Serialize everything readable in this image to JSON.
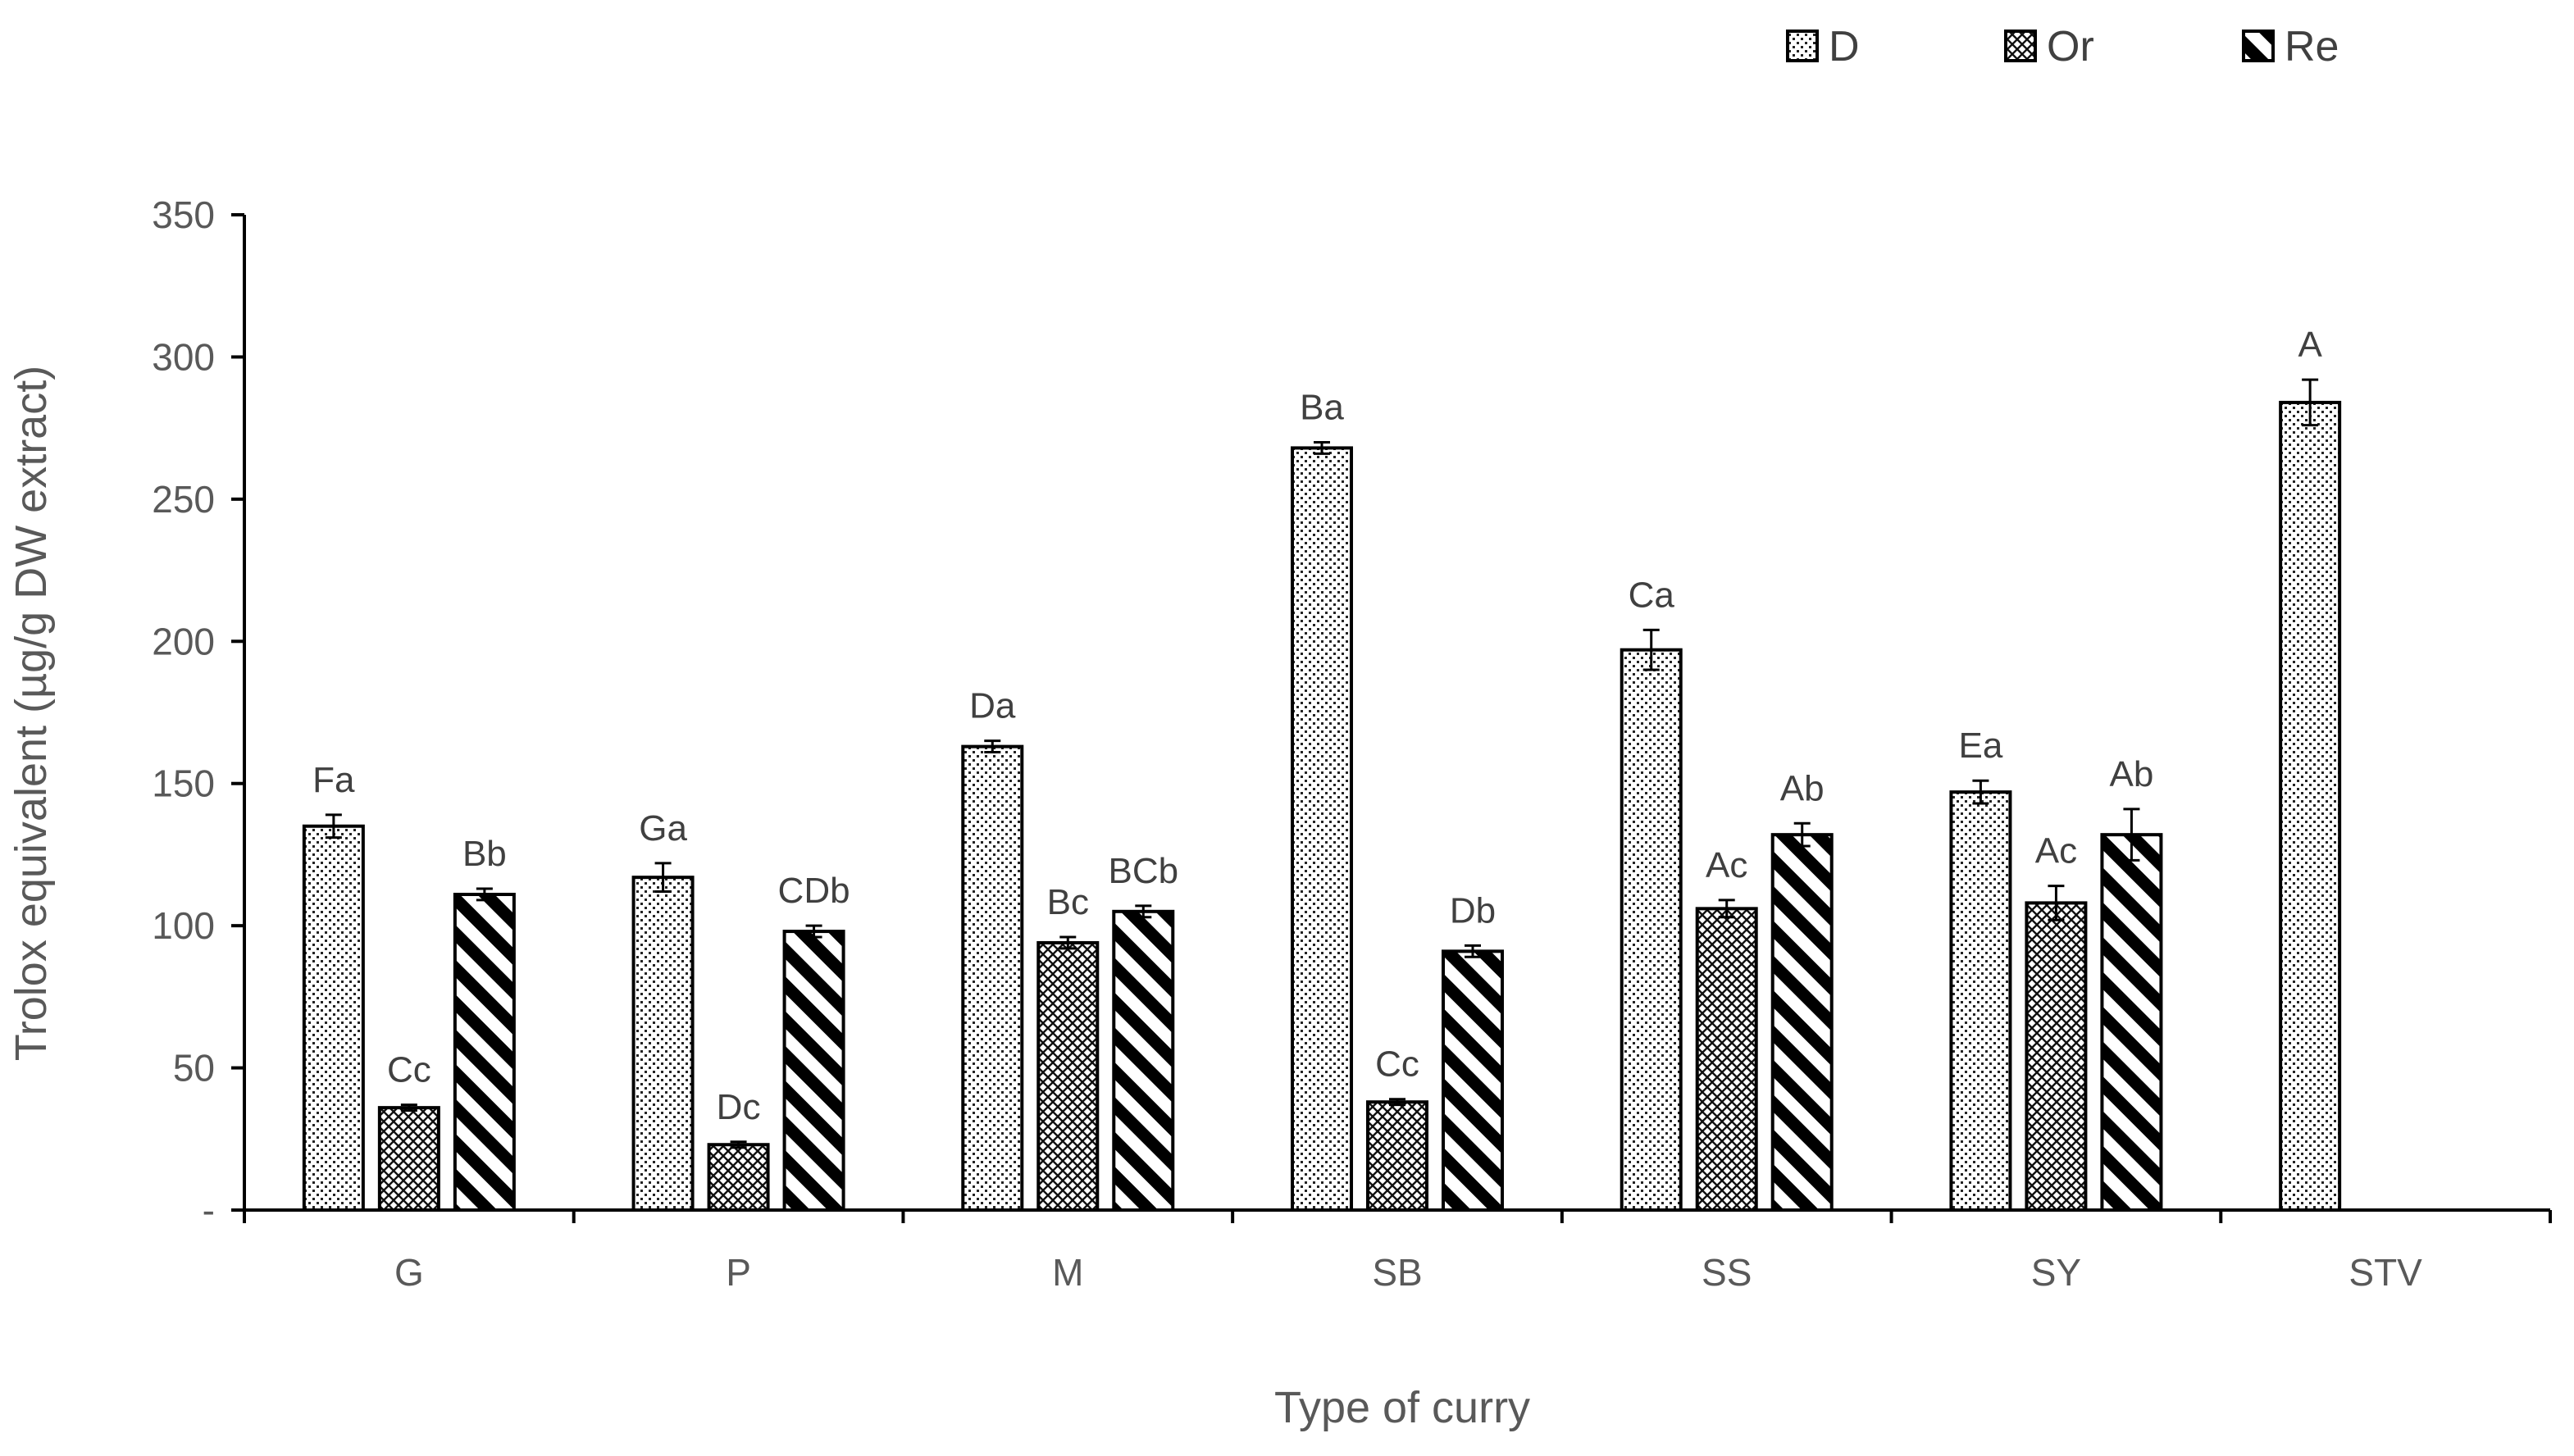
{
  "chart_data": {
    "type": "bar",
    "xlabel": "Type of curry",
    "ylabel": "Trolox equivalent (µg/g DW extract)",
    "ylim": [
      0,
      350
    ],
    "yticks": [
      0,
      50,
      100,
      150,
      200,
      250,
      300,
      350
    ],
    "ytick_labels": [
      "-",
      "50",
      "100",
      "150",
      "200",
      "250",
      "300",
      "350"
    ],
    "categories": [
      "G",
      "P",
      "M",
      "SB",
      "SS",
      "SY",
      "STV"
    ],
    "legend_position": "top-right",
    "grid": false,
    "series": [
      {
        "name": "D",
        "pattern": "dots",
        "values": [
          135,
          117,
          163,
          268,
          197,
          147,
          284
        ],
        "errors": [
          4,
          5,
          2,
          2,
          7,
          4,
          8
        ],
        "labels": [
          "Fa",
          "Ga",
          "Da",
          "Ba",
          "Ca",
          "Ea",
          "A"
        ]
      },
      {
        "name": "Or",
        "pattern": "crosshatch",
        "values": [
          36,
          23,
          94,
          38,
          106,
          108,
          null
        ],
        "errors": [
          1,
          1,
          2,
          1,
          3,
          6,
          null
        ],
        "labels": [
          "Cc",
          "Dc",
          "Bc",
          "Cc",
          "Ac",
          "Ac",
          ""
        ]
      },
      {
        "name": "Re",
        "pattern": "diagonal",
        "values": [
          111,
          98,
          105,
          91,
          132,
          132,
          null
        ],
        "errors": [
          2,
          2,
          2,
          2,
          4,
          9,
          null
        ],
        "labels": [
          "Bb",
          "CDb",
          "BCb",
          "Db",
          "Ab",
          "Ab",
          ""
        ]
      }
    ]
  },
  "colors": {
    "bar_outline": "#000000",
    "axis": "#000000",
    "text": "#595959",
    "fill": "#ffffff"
  }
}
